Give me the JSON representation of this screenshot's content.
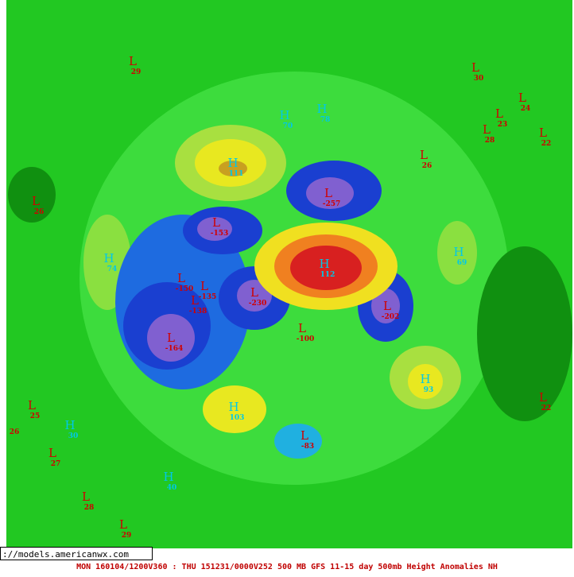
{
  "map": {
    "markers": [
      {
        "letter": "H",
        "value": "74"
      },
      {
        "letter": "H",
        "value": "111"
      },
      {
        "letter": "L",
        "value": "-153"
      },
      {
        "letter": "L",
        "value": "-150"
      },
      {
        "letter": "L",
        "value": "-135"
      },
      {
        "letter": "L",
        "value": "-138"
      },
      {
        "letter": "L",
        "value": "-164"
      },
      {
        "letter": "L",
        "value": "-230"
      },
      {
        "letter": "L",
        "value": "-100"
      },
      {
        "letter": "L",
        "value": "-257"
      },
      {
        "letter": "H",
        "value": "112"
      },
      {
        "letter": "L",
        "value": "-202"
      },
      {
        "letter": "H",
        "value": "69"
      },
      {
        "letter": "H",
        "value": "93"
      },
      {
        "letter": "H",
        "value": "103"
      },
      {
        "letter": "L",
        "value": "-83"
      },
      {
        "letter": "H",
        "value": "70"
      },
      {
        "letter": "H",
        "value": "78"
      },
      {
        "letter": "L",
        "value": "29"
      },
      {
        "letter": "L",
        "value": "30"
      },
      {
        "letter": "L",
        "value": "24"
      },
      {
        "letter": "L",
        "value": "22"
      },
      {
        "letter": "L",
        "value": "26"
      },
      {
        "letter": "L",
        "value": "25"
      },
      {
        "letter": "L",
        "value": "27"
      },
      {
        "letter": "L",
        "value": "28"
      },
      {
        "letter": "L",
        "value": "29"
      },
      {
        "letter": "H",
        "value": "30"
      },
      {
        "letter": "H",
        "value": "40"
      },
      {
        "letter": "L",
        "value": "22"
      },
      {
        "letter": "L",
        "value": "26"
      },
      {
        "letter": "L",
        "value": "23"
      },
      {
        "letter": "L",
        "value": "28"
      }
    ],
    "stray_label": "26"
  },
  "url": "://models.americanwx.com",
  "caption": "MON 160104/1200V360 : THU 151231/0000V252   500 MB GFS 11-15 day 500mb Height Anomalies NH"
}
